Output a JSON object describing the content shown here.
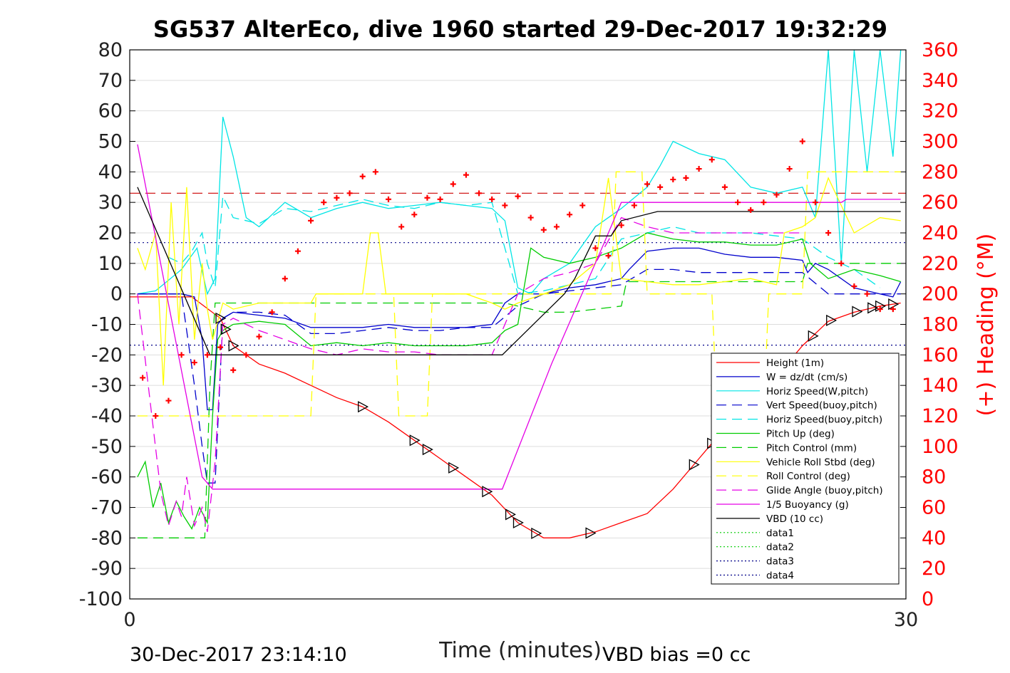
{
  "chart_data": {
    "type": "line",
    "title": "SG537 AlterEco, dive 1960 started 29-Dec-2017 19:32:29",
    "xlabel": "Time (minutes)",
    "ylabel_right": "(+) Heading (°M)",
    "xlim": [
      0,
      30
    ],
    "ylim": [
      -100,
      80
    ],
    "ylim_right": [
      0,
      360
    ],
    "xticks": [
      "0",
      "30"
    ],
    "yticks": [
      "80",
      "70",
      "60",
      "50",
      "40",
      "30",
      "20",
      "10",
      "0",
      "-10",
      "-20",
      "-30",
      "-40",
      "-50",
      "-60",
      "-70",
      "-80",
      "-90",
      "-100"
    ],
    "yticks_right": [
      "360",
      "340",
      "320",
      "300",
      "280",
      "260",
      "240",
      "220",
      "200",
      "180",
      "160",
      "140",
      "120",
      "100",
      "80",
      "60",
      "40",
      "20",
      "0"
    ],
    "grid": true,
    "legend_position": "bottom-right",
    "footer_left": "30-Dec-2017 23:14:10",
    "footer_right": "VBD bias =0 cc",
    "reference_lines": {
      "red_dashed_y": 33,
      "blue_dotted_upper_y": 16.8,
      "blue_dotted_lower_y": -16.8
    },
    "series": [
      {
        "name": "Height (1m)",
        "color": "#ff0000",
        "style": "solid",
        "x": [
          0,
          2.4,
          3.5,
          4,
          5,
          6,
          7,
          8,
          9,
          10,
          11,
          12,
          13,
          14,
          15,
          16,
          17,
          18,
          19,
          20,
          21,
          22,
          23,
          24,
          25,
          26,
          27,
          28,
          29,
          29.8
        ],
        "y": [
          -1,
          -1,
          -8,
          -17,
          -23,
          -26,
          -30,
          -34,
          -37,
          -42,
          -48,
          -54,
          -60,
          -66,
          -75,
          -80,
          -80,
          -78,
          -75,
          -72,
          -64,
          -54,
          -44,
          -36,
          -27,
          -17,
          -9,
          -6,
          -4,
          -3
        ]
      },
      {
        "name": "W = dz/dt (cm/s)",
        "color": "#0000cc",
        "style": "solid",
        "x": [
          0.3,
          1,
          2,
          2.5,
          2.8,
          3.0,
          3.2,
          3.4,
          3.6,
          4,
          5,
          6,
          7,
          8,
          9,
          10,
          11,
          12,
          13,
          14,
          14.5,
          15,
          15.5,
          16,
          17,
          18,
          19,
          19.3,
          20,
          21,
          22,
          23,
          24,
          25,
          26,
          26.2,
          26.5,
          27,
          28,
          29,
          29.5,
          29.8
        ],
        "y": [
          0,
          0,
          0,
          -1,
          -15,
          -38,
          -38,
          -10,
          -8,
          -6,
          -7,
          -8,
          -11,
          -11,
          -11,
          -10,
          -11,
          -11,
          -11,
          -10,
          -3,
          0,
          0,
          0,
          2,
          3,
          5,
          8,
          14,
          15,
          15,
          13,
          12,
          12,
          11,
          7,
          10,
          8,
          2,
          0,
          -1,
          4
        ]
      },
      {
        "name": "Horiz Speed(W,pitch)",
        "color": "#00e5e5",
        "style": "solid",
        "x": [
          0.3,
          1,
          2,
          2.6,
          3.0,
          3.3,
          3.6,
          4,
          4.5,
          5,
          6,
          7,
          8,
          9,
          10,
          11,
          12,
          13,
          14,
          14.5,
          15,
          15.5,
          16,
          17,
          18,
          19,
          20,
          20.5,
          21,
          22,
          23,
          24,
          25,
          26,
          26.5,
          27,
          27.5,
          28,
          28.5,
          29,
          29.5,
          29.8
        ],
        "y": [
          0,
          1,
          8,
          15,
          0,
          5,
          58,
          45,
          25,
          22,
          30,
          25,
          28,
          30,
          28,
          29,
          30,
          29,
          28,
          24,
          2,
          0,
          5,
          10,
          22,
          28,
          35,
          42,
          50,
          46,
          44,
          35,
          33,
          35,
          25,
          80,
          10,
          80,
          40,
          80,
          45,
          80
        ]
      },
      {
        "name": "Vert Speed(buoy,pitch)",
        "color": "#0000cc",
        "style": "dashed",
        "x": [
          0.3,
          1,
          2,
          2.5,
          2.8,
          3.0,
          3.3,
          3.6,
          4,
          5,
          6,
          7,
          8,
          9,
          10,
          11,
          12,
          13,
          14,
          15,
          16,
          17,
          18,
          19,
          20,
          21,
          22,
          23,
          24,
          25,
          26,
          27,
          28,
          29,
          29.8
        ],
        "y": [
          0,
          0,
          0,
          -30,
          -50,
          -62,
          -62,
          -8,
          -6,
          -6,
          -7,
          -13,
          -13,
          -12,
          -11,
          -12,
          -12,
          -11,
          -11,
          -4,
          0,
          1,
          2,
          3,
          8,
          8,
          7,
          7,
          7,
          7,
          7,
          0,
          0,
          0,
          0
        ]
      },
      {
        "name": "Horiz Speed(buoy,pitch)",
        "color": "#00e5e5",
        "style": "dashed",
        "x": [
          1.5,
          2.0,
          2.4,
          2.8,
          3.0,
          3.3,
          3.6,
          4,
          5,
          6,
          7,
          8,
          9,
          10,
          11,
          12,
          13,
          14,
          15,
          16,
          17,
          18,
          19,
          20,
          21,
          22,
          23,
          24,
          25,
          26,
          27,
          28,
          29
        ],
        "y": [
          12,
          10,
          14,
          20,
          10,
          2,
          32,
          25,
          23,
          28,
          27,
          29,
          31,
          29,
          28,
          30,
          29,
          30,
          0,
          1,
          3,
          5,
          18,
          20,
          22,
          20,
          20,
          20,
          19,
          18,
          12,
          8,
          2
        ]
      },
      {
        "name": "Pitch Up (deg)",
        "color": "#00cc00",
        "style": "solid",
        "x": [
          0.3,
          0.6,
          0.9,
          1.2,
          1.5,
          1.8,
          2.1,
          2.4,
          2.7,
          3.0,
          3.2,
          3.4,
          3.6,
          4,
          5,
          6,
          7,
          8,
          9,
          10,
          11,
          12,
          13,
          14,
          14.5,
          15,
          15.5,
          16,
          17,
          18,
          19,
          20,
          21,
          22,
          23,
          24,
          25,
          26,
          26.3,
          27,
          28,
          29,
          29.8
        ],
        "y": [
          -60,
          -55,
          -70,
          -62,
          -75,
          -68,
          -73,
          -77,
          -70,
          -75,
          -40,
          -15,
          -12,
          -10,
          -9,
          -10,
          -17,
          -16,
          -17,
          -16,
          -17,
          -17,
          -17,
          -16,
          -12,
          -10,
          15,
          12,
          10,
          12,
          15,
          20,
          18,
          17,
          17,
          16,
          16,
          18,
          10,
          5,
          8,
          6,
          4
        ]
      },
      {
        "name": "Pitch Control (mm)",
        "color": "#00cc00",
        "style": "dashed",
        "x": [
          0.3,
          2.9,
          3.1,
          3.3,
          14.5,
          16,
          17,
          19,
          19.2,
          26,
          26.2,
          29.8
        ],
        "y": [
          -80,
          -80,
          -30,
          -3,
          -3,
          -6,
          -6,
          -4,
          4,
          4,
          10,
          10
        ]
      },
      {
        "name": "Vehicle Roll Stbd (deg)",
        "color": "#ffff00",
        "style": "solid",
        "x": [
          0.3,
          0.6,
          1.0,
          1.3,
          1.6,
          1.9,
          2.2,
          2.5,
          2.8,
          3.0,
          3.2,
          3.6,
          4,
          5,
          6,
          7,
          7.2,
          9,
          9.3,
          9.6,
          9.9,
          10.2,
          12,
          13,
          14,
          14.5,
          15,
          16,
          17,
          18,
          18.5,
          19,
          20,
          21,
          22,
          23,
          24,
          25,
          25.3,
          26,
          26.5,
          27,
          28,
          29,
          29.8
        ],
        "y": [
          15,
          8,
          20,
          -30,
          30,
          -10,
          35,
          -15,
          10,
          -5,
          -15,
          -3,
          -5,
          -3,
          -3,
          -3,
          0,
          0,
          20,
          20,
          0,
          0,
          0,
          0,
          -3,
          -5,
          -3,
          0,
          3,
          10,
          38,
          5,
          4,
          3,
          3,
          4,
          5,
          3,
          20,
          22,
          25,
          38,
          20,
          25,
          24
        ]
      },
      {
        "name": "Roll Control (deg)",
        "color": "#ffff00",
        "style": "dashed",
        "x": [
          0.3,
          2.6,
          3.0,
          3.2,
          7.0,
          7.2,
          9.0,
          9.2,
          10.2,
          10.4,
          11.5,
          11.7,
          12.2,
          12.4,
          14.5,
          15,
          18.6,
          18.8,
          19.8,
          20,
          21.5,
          21.7,
          22.5,
          22.7,
          24.5,
          24.7,
          26,
          26.2,
          27,
          27.2,
          28,
          29.8
        ],
        "y": [
          -40,
          -40,
          -40,
          -40,
          -40,
          0,
          0,
          0,
          0,
          -40,
          -40,
          0,
          0,
          0,
          0,
          0,
          0,
          40,
          40,
          0,
          0,
          0,
          0,
          -40,
          -40,
          0,
          0,
          40,
          40,
          40,
          40,
          40
        ]
      },
      {
        "name": "Glide Angle (buoy,pitch)",
        "color": "#e500e5",
        "style": "dashed",
        "x": [
          0.3,
          1.2,
          1.5,
          1.8,
          2.0,
          2.2,
          2.5,
          2.8,
          3.0,
          3.3,
          3.6,
          4,
          5,
          6,
          7,
          8,
          9,
          10,
          11,
          12,
          13,
          14,
          15,
          16,
          17,
          18,
          19,
          20,
          21,
          22,
          23,
          24,
          25,
          26
        ],
        "y": [
          0,
          -65,
          -76,
          -68,
          -73,
          -60,
          -76,
          -70,
          -78,
          -55,
          -10,
          -8,
          -12,
          -15,
          -18,
          -20,
          -18,
          -19,
          -19,
          -20,
          -20,
          -20,
          0,
          5,
          7,
          10,
          25,
          22,
          20,
          20,
          20,
          20,
          20,
          20
        ]
      },
      {
        "name": "1/5 Buoyancy (g)",
        "color": "#e500e5",
        "style": "solid",
        "x": [
          0.3,
          2.8,
          3.2,
          14.4,
          16.3,
          18.3,
          19.0,
          27.5,
          27.7,
          29.8
        ],
        "y": [
          49,
          -60,
          -64,
          -64,
          -23,
          16,
          30,
          30,
          31,
          31
        ]
      },
      {
        "name": "VBD (10 cc)",
        "color": "#000000",
        "style": "solid",
        "x": [
          0.3,
          3.1,
          14.4,
          16.8,
          17.2,
          18.0,
          18.6,
          19.0,
          20.4,
          29.8
        ],
        "y": [
          35,
          -20,
          -20,
          0,
          5,
          19,
          19,
          24,
          27,
          27
        ]
      }
    ],
    "heading_series": {
      "marker": "+",
      "color": "#ff0000",
      "x": [
        0.5,
        1.0,
        1.5,
        2.0,
        2.5,
        3.0,
        3.5,
        4.0,
        4.5,
        5.0,
        5.5,
        6.0,
        6.5,
        7.0,
        7.5,
        8.0,
        8.5,
        9.0,
        9.5,
        10.0,
        10.5,
        11.0,
        11.5,
        12.0,
        12.5,
        13.0,
        13.5,
        14.0,
        14.5,
        15.0,
        15.5,
        16.0,
        16.5,
        17.0,
        17.5,
        18.0,
        18.5,
        19.0,
        19.5,
        20.0,
        20.5,
        21.0,
        21.5,
        22.0,
        22.5,
        23.0,
        23.5,
        24.0,
        24.5,
        25.0,
        25.5,
        26.0,
        26.5,
        27.0,
        27.5,
        28.0,
        28.5,
        29.0,
        29.5
      ],
      "y": [
        145,
        120,
        130,
        160,
        155,
        160,
        165,
        150,
        160,
        172,
        188,
        210,
        228,
        248,
        260,
        263,
        266,
        277,
        280,
        262,
        244,
        252,
        263,
        262,
        272,
        278,
        266,
        262,
        258,
        264,
        250,
        242,
        244,
        252,
        258,
        230,
        225,
        245,
        258,
        272,
        270,
        275,
        276,
        282,
        288,
        270,
        260,
        255,
        260,
        265,
        282,
        300,
        260,
        240,
        220,
        205,
        200,
        190,
        190
      ]
    }
  }
}
